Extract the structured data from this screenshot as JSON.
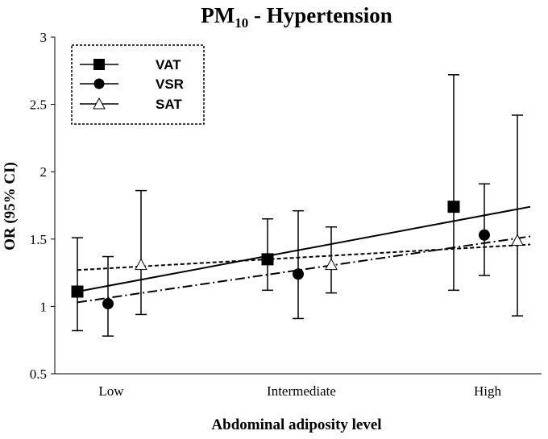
{
  "chart_data": {
    "type": "line",
    "title": "PM",
    "title_subscript": "10",
    "title_rest": " - Hypertension",
    "xlabel": "Abdominal adiposity level",
    "ylabel": "OR (95% CI)",
    "categories": [
      "Low",
      "Intermediate",
      "High"
    ],
    "ylim": [
      0.5,
      3
    ],
    "yticks": [
      "0.5",
      "1",
      "1.5",
      "2",
      "2.5",
      "3"
    ],
    "grid": false,
    "legend_position": "top-left",
    "series": [
      {
        "name": "VAT",
        "marker": "square",
        "line_style": "solid",
        "values": [
          1.11,
          1.35,
          1.74
        ],
        "ci_lower": [
          0.82,
          1.12,
          1.12
        ],
        "ci_upper": [
          1.51,
          1.65,
          2.72
        ]
      },
      {
        "name": "VSR",
        "marker": "circle",
        "line_style": "dash-dot",
        "values": [
          1.02,
          1.24,
          1.53
        ],
        "ci_lower": [
          0.78,
          0.91,
          1.23
        ],
        "ci_upper": [
          1.37,
          1.71,
          1.91
        ]
      },
      {
        "name": "SAT",
        "marker": "open-triangle",
        "line_style": "dashed",
        "values": [
          1.31,
          1.31,
          1.49
        ],
        "ci_lower": [
          0.94,
          1.1,
          0.93
        ],
        "ci_upper": [
          1.86,
          1.59,
          2.42
        ]
      }
    ],
    "fit_lines": [
      {
        "series": "VAT",
        "style": "solid",
        "y_start": 1.11,
        "y_end": 1.74
      },
      {
        "series": "VSR",
        "style": "dash-dot",
        "y_start": 1.03,
        "y_end": 1.52
      },
      {
        "series": "SAT",
        "style": "dashed",
        "y_start": 1.27,
        "y_end": 1.46
      }
    ]
  }
}
